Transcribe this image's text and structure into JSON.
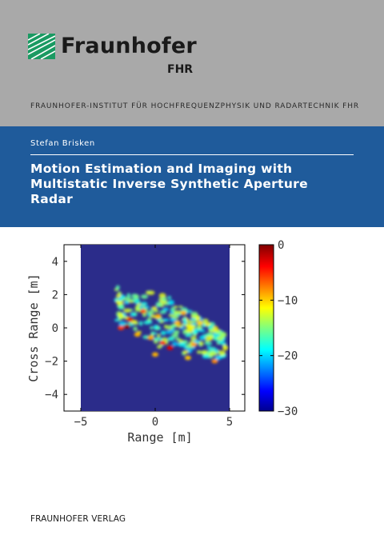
{
  "publisher_header": {
    "brand": "Fraunhofer",
    "unit": "FHR",
    "institute": "FRAUNHOFER-INSTITUT FÜR HOCHFREQUENZPHYSIK UND RADARTECHNIK FHR",
    "brand_color": "#1a9a62"
  },
  "book": {
    "author": "Stefan Brisken",
    "title": "Motion Estimation and Imaging with Multistatic Inverse Synthetic Aperture Radar"
  },
  "footer": {
    "publisher": "FRAUNHOFER VERLAG"
  },
  "chart_data": {
    "type": "heatmap",
    "xlabel": "Range [m]",
    "ylabel": "Cross Range [m]",
    "xticks": [
      -5,
      0,
      5
    ],
    "yticks": [
      4,
      2,
      0,
      -2,
      -4
    ],
    "xlim": [
      -5,
      5
    ],
    "ylim": [
      -5,
      5
    ],
    "colorbar": {
      "ticks": [
        0,
        -10,
        -20,
        -30
      ],
      "range": [
        -30,
        0
      ],
      "colormap": "jet"
    },
    "background_color": "#2b2c8a"
  }
}
